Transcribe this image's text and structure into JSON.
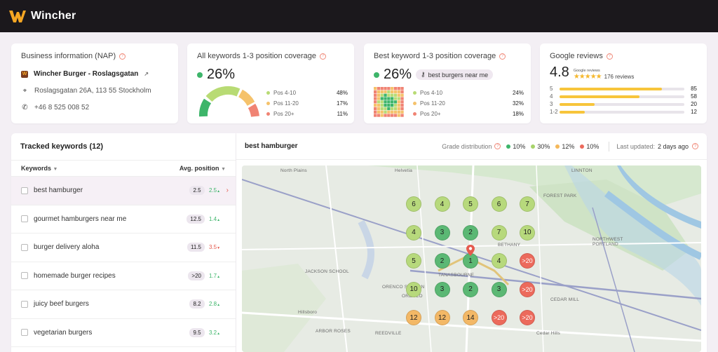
{
  "app": {
    "name": "Wincher"
  },
  "business": {
    "title": "Business information (NAP)",
    "name": "Wincher Burger - Roslagsgatan",
    "address": "Roslagsgatan 26A, 113 55 Stockholm",
    "phone": "+46 8 525 008 52"
  },
  "all_keywords": {
    "title": "All keywords 1-3 position coverage",
    "pct": "26%",
    "legend": [
      {
        "label": "Pos 4-10",
        "value": "48%",
        "color": "#b8db74"
      },
      {
        "label": "Pos 11-20",
        "value": "17%",
        "color": "#f5c26b"
      },
      {
        "label": "Pos 20+",
        "value": "11%",
        "color": "#f08373"
      }
    ]
  },
  "best_keyword": {
    "title": "Best keyword 1-3 position coverage",
    "pct": "26%",
    "keyword": "best burgers near me",
    "legend": [
      {
        "label": "Pos 4-10",
        "value": "24%",
        "color": "#b8db74"
      },
      {
        "label": "Pos 11-20",
        "value": "32%",
        "color": "#f5c26b"
      },
      {
        "label": "Pos 20+",
        "value": "18%",
        "color": "#f08373"
      }
    ]
  },
  "reviews": {
    "title": "Google reviews",
    "rating": "4.8",
    "source": "Google reviews",
    "stars": "★★★★★",
    "count_label": "176 reviews",
    "rows": [
      {
        "stars": "5",
        "count": "85",
        "fraction": 0.82
      },
      {
        "stars": "4",
        "count": "58",
        "fraction": 0.64
      },
      {
        "stars": "3",
        "count": "20",
        "fraction": 0.28
      },
      {
        "stars": "1-2",
        "count": "12",
        "fraction": 0.2
      }
    ]
  },
  "tracked": {
    "title": "Tracked keywords (12)",
    "col_keywords": "Keywords",
    "col_position": "Avg. position",
    "rows": [
      {
        "label": "best hamburger",
        "pos": "2.5",
        "delta": "2.5",
        "dir": "up"
      },
      {
        "label": "gourmet hamburgers near me",
        "pos": "12.5",
        "delta": "1.4",
        "dir": "up"
      },
      {
        "label": "burger delivery aloha",
        "pos": "11.5",
        "delta": "3.5",
        "dir": "down"
      },
      {
        "label": "homemade burger recipes",
        "pos": ">20",
        "delta": "1.7",
        "dir": "up"
      },
      {
        "label": "juicy beef burgers",
        "pos": "8.2",
        "delta": "2.8",
        "dir": "up"
      },
      {
        "label": "vegetarian burgers",
        "pos": "9.5",
        "delta": "3.2",
        "dir": "up"
      }
    ]
  },
  "map_panel": {
    "keyword": "best hamburger",
    "grade_label": "Grade distribution",
    "grades": [
      {
        "value": "10%",
        "color": "#3db56a"
      },
      {
        "value": "30%",
        "color": "#a7d36a"
      },
      {
        "value": "12%",
        "color": "#f5b85a"
      },
      {
        "value": "10%",
        "color": "#ec6a5c"
      }
    ],
    "updated_label": "Last updated:",
    "updated_value": "2 days ago",
    "labels": [
      "North Plains",
      "Helvetia",
      "LINNTON",
      "FOREST PARK",
      "NORTHWEST PORTLAND",
      "BETHANY",
      "TANASBOURNE",
      "JACKSON SCHOOL",
      "ORENCO STATION",
      "ORENCO",
      "Hillsboro",
      "ARBOR ROSES",
      "REEDVILLE",
      "CEDAR MILL",
      "Cedar Hills"
    ],
    "grid": [
      [
        "6",
        "4",
        "5",
        "6",
        "7"
      ],
      [
        "4",
        "3",
        "2",
        "7",
        "10"
      ],
      [
        "5",
        "2",
        "1",
        "4",
        ">20"
      ],
      [
        "10",
        "3",
        "2",
        "3",
        ">20"
      ],
      [
        "12",
        "12",
        "14",
        ">20",
        ">20"
      ]
    ]
  },
  "colors": {
    "top": "#3db56a",
    "good": "#b8db74",
    "mid": "#f5c26b",
    "bad": "#f08373",
    "brand": "#f5a623"
  }
}
